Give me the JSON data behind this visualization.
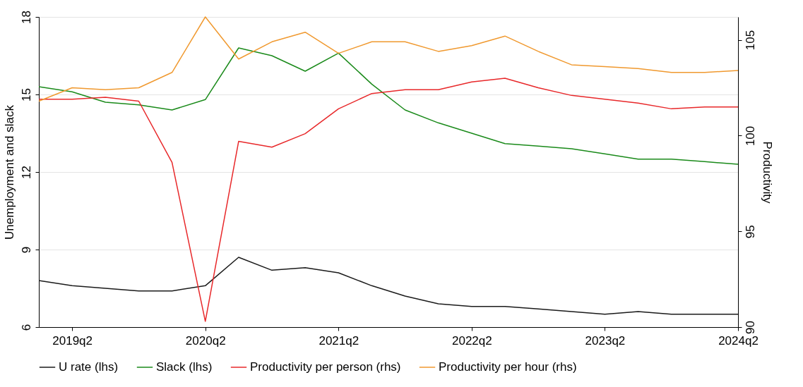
{
  "chart_data": {
    "type": "line",
    "categories": [
      null,
      "2019q2",
      null,
      null,
      null,
      "2020q2",
      null,
      null,
      null,
      "2021q2",
      null,
      null,
      null,
      "2022q2",
      null,
      null,
      null,
      "2023q2",
      null,
      null,
      null,
      "2024q2"
    ],
    "ylabel": "Unemployment and slack",
    "y2label": "Productivity",
    "ylim": [
      6,
      18
    ],
    "yticks": [
      6,
      9,
      12,
      15,
      18
    ],
    "y2lim": [
      90,
      106.2
    ],
    "y2ticks": [
      90,
      95,
      100,
      105
    ],
    "grid": "y",
    "legend": "bottom",
    "series": [
      {
        "name": "U rate (lhs)",
        "color": "#1a1a1a",
        "values": [
          7.8,
          7.6,
          7.5,
          7.4,
          7.4,
          7.6,
          8.7,
          8.2,
          8.3,
          8.1,
          7.6,
          7.2,
          6.9,
          6.8,
          6.8,
          6.7,
          6.6,
          6.5,
          6.6,
          6.5,
          6.5,
          6.5
        ]
      },
      {
        "name": "Slack (lhs)",
        "color": "#1a8a1a",
        "values": [
          15.3,
          15.1,
          14.7,
          14.6,
          14.4,
          14.8,
          16.8,
          16.5,
          15.9,
          16.6,
          15.4,
          14.4,
          13.9,
          13.5,
          13.1,
          13.0,
          12.9,
          12.7,
          12.5,
          12.5,
          12.4,
          12.3
        ]
      },
      {
        "name": "Productivity per person (rhs)",
        "color": "#e8282a",
        "axis": "y2",
        "values": [
          101.9,
          101.9,
          102.0,
          101.8,
          98.6,
          90.3,
          99.7,
          99.4,
          100.1,
          101.4,
          102.2,
          102.4,
          102.4,
          102.8,
          103.0,
          102.5,
          102.1,
          101.9,
          101.7,
          101.4,
          101.5,
          101.5
        ]
      },
      {
        "name": "Productivity per hour (rhs)",
        "color": "#f0992f",
        "axis": "y2",
        "values": [
          101.8,
          102.5,
          102.4,
          102.5,
          103.3,
          106.2,
          104.0,
          104.9,
          105.4,
          104.3,
          104.9,
          104.9,
          104.4,
          104.7,
          105.2,
          104.4,
          103.7,
          103.6,
          103.5,
          103.3,
          103.3,
          103.4
        ]
      }
    ]
  }
}
